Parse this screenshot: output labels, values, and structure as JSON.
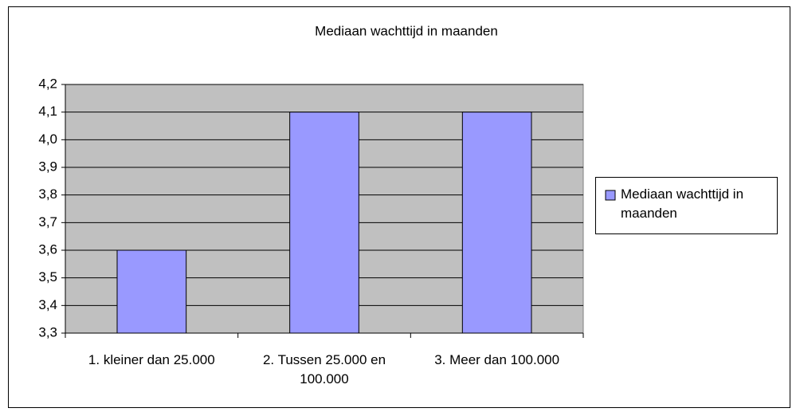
{
  "chart_data": {
    "type": "bar",
    "title": "Mediaan wachttijd in maanden",
    "categories": [
      "1. kleiner dan 25.000",
      "2. Tussen 25.000 en 100.000",
      "3. Meer dan 100.000"
    ],
    "series": [
      {
        "name": "Mediaan wachttijd in maanden",
        "color": "#9999ff",
        "values": [
          3.6,
          4.1,
          4.1
        ]
      }
    ],
    "ylim": [
      3.3,
      4.2
    ],
    "yticks": [
      {
        "value": 3.3,
        "label": "3,3"
      },
      {
        "value": 3.4,
        "label": "3,4"
      },
      {
        "value": 3.5,
        "label": "3,5"
      },
      {
        "value": 3.6,
        "label": "3,6"
      },
      {
        "value": 3.7,
        "label": "3,7"
      },
      {
        "value": 3.8,
        "label": "3,8"
      },
      {
        "value": 3.9,
        "label": "3,9"
      },
      {
        "value": 4.0,
        "label": "4,0"
      },
      {
        "value": 4.1,
        "label": "4,1"
      },
      {
        "value": 4.2,
        "label": "4,2"
      }
    ],
    "grid": true,
    "legend": "right"
  }
}
